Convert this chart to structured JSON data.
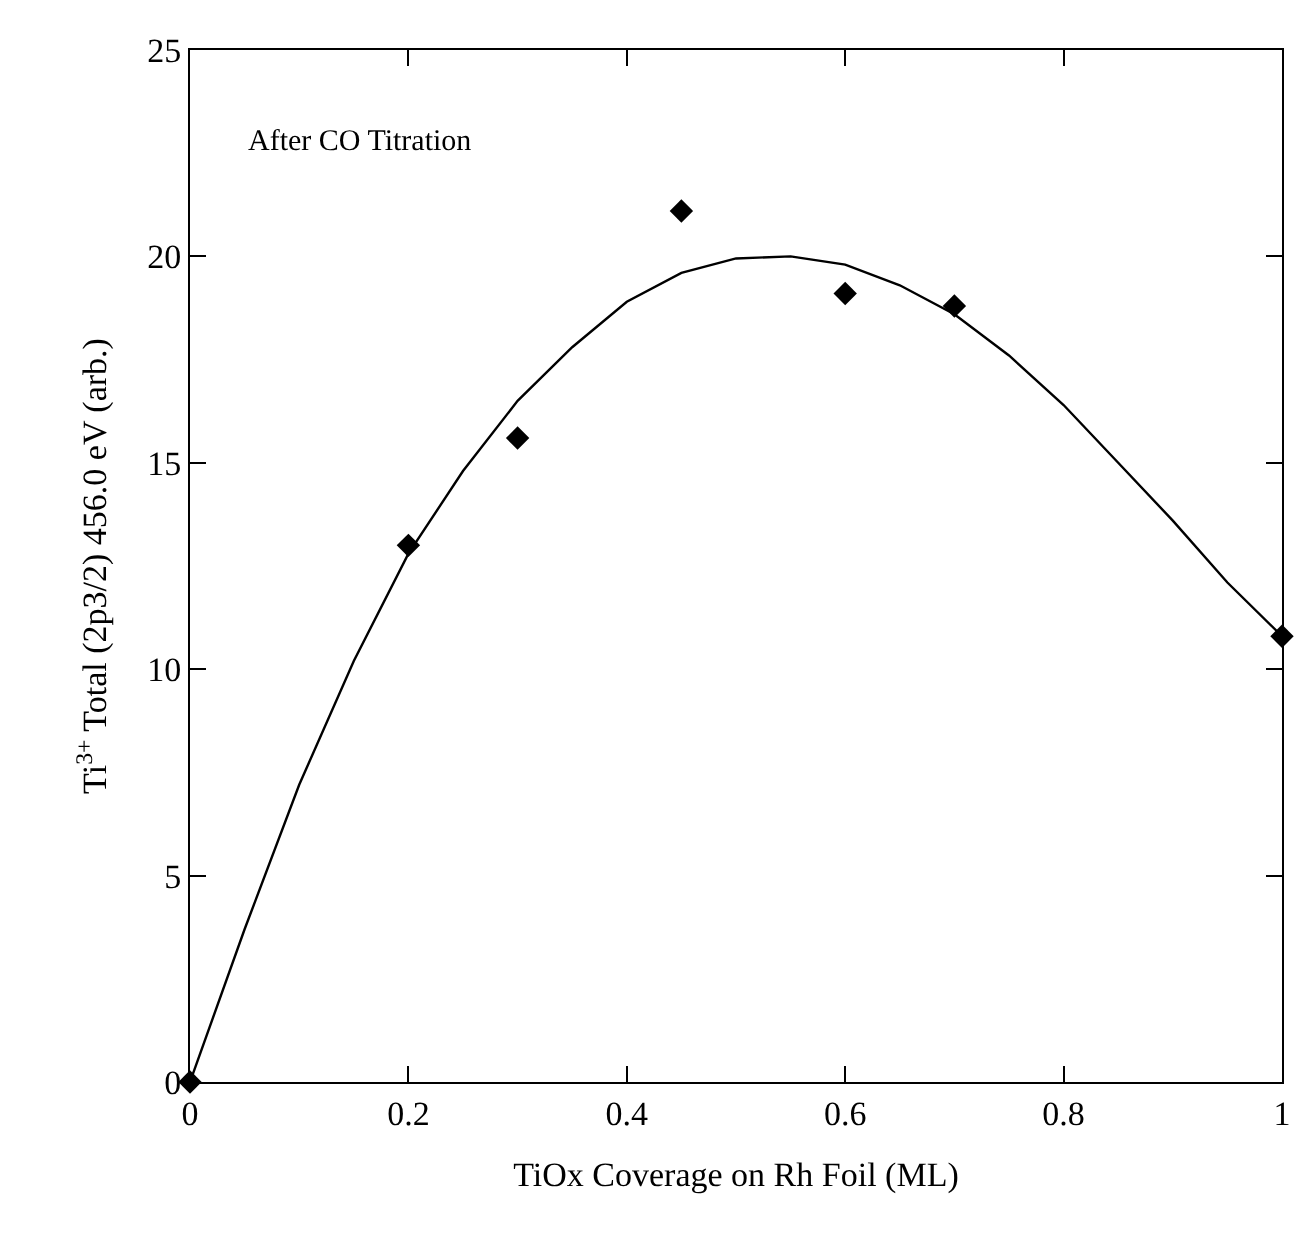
{
  "chart_data": {
    "type": "scatter",
    "xlabel": "TiOx Coverage on Rh Foil (ML)",
    "ylabel": "Ti$^{3+}$ Total (2p3/2) 456.0 eV (arb.)",
    "annotations": [
      "After CO Titration"
    ],
    "xlim": [
      0,
      1
    ],
    "xticks": [
      0,
      0.2,
      0.4,
      0.6,
      0.8,
      1
    ],
    "ylim": [
      0,
      25
    ],
    "yticks": [
      0,
      5,
      10,
      15,
      20,
      25
    ],
    "series": [
      {
        "marker": "diamond",
        "color": "#000000",
        "x": [
          0,
          0.2,
          0.3,
          0.45,
          0.6,
          0.7,
          1.0
        ],
        "values": [
          0,
          13,
          15.6,
          21.1,
          19.1,
          18.8,
          10.8
        ]
      },
      {
        "type": "line",
        "marker": "none",
        "line_style": "solid",
        "color": "#000000",
        "x": [
          0,
          0.05,
          0.1,
          0.15,
          0.2,
          0.25,
          0.3,
          0.35,
          0.4,
          0.45,
          0.5,
          0.55,
          0.6,
          0.65,
          0.7,
          0.75,
          0.8,
          0.85,
          0.9,
          0.95,
          1.0
        ],
        "values": [
          0,
          3.7,
          7.2,
          10.2,
          12.8,
          14.8,
          16.5,
          17.8,
          18.9,
          19.6,
          19.95,
          20.0,
          19.8,
          19.3,
          18.6,
          17.6,
          16.4,
          15.0,
          13.6,
          12.1,
          10.8
        ]
      }
    ]
  }
}
